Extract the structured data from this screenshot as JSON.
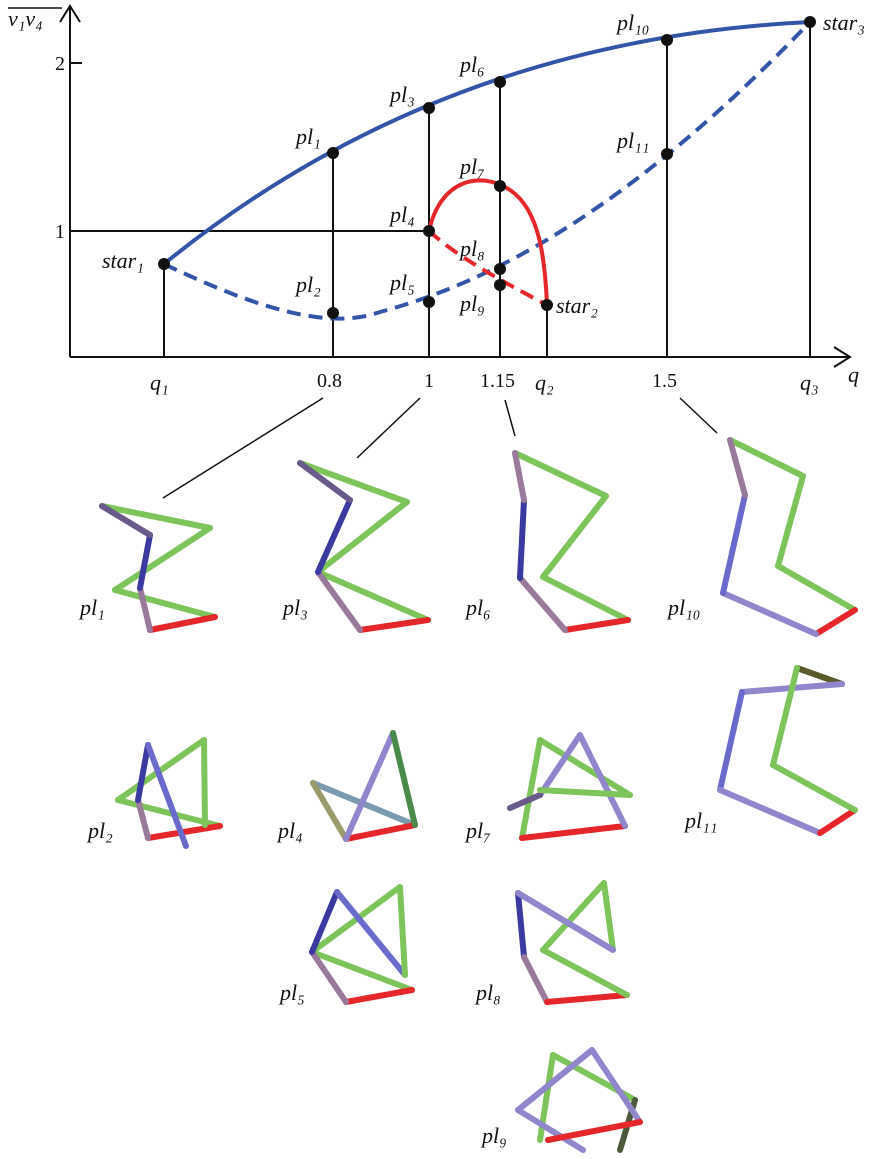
{
  "axes": {
    "y_label": "v₁v₄",
    "x_label": "q",
    "y_ticks": [
      "1",
      "2"
    ],
    "x_ticks": [
      "q₁",
      "0.8",
      "1",
      "1.15",
      "q₂",
      "1.5",
      "q₃"
    ]
  },
  "points": {
    "star1": "star₁",
    "star2": "star₂",
    "star3": "star₃",
    "pl1": "pl₁",
    "pl2": "pl₂",
    "pl3": "pl₃",
    "pl4": "pl₄",
    "pl5": "pl₅",
    "pl6": "pl₆",
    "pl7": "pl₇",
    "pl8": "pl₈",
    "pl9": "pl₉",
    "pl10": "pl₁₀",
    "pl11": "pl₁₁"
  },
  "colors": {
    "blue": "#3355a8",
    "red": "#e5262b",
    "green": "#7dc45a",
    "purple": "#8f86cc",
    "navy": "#3b3aa0"
  }
}
